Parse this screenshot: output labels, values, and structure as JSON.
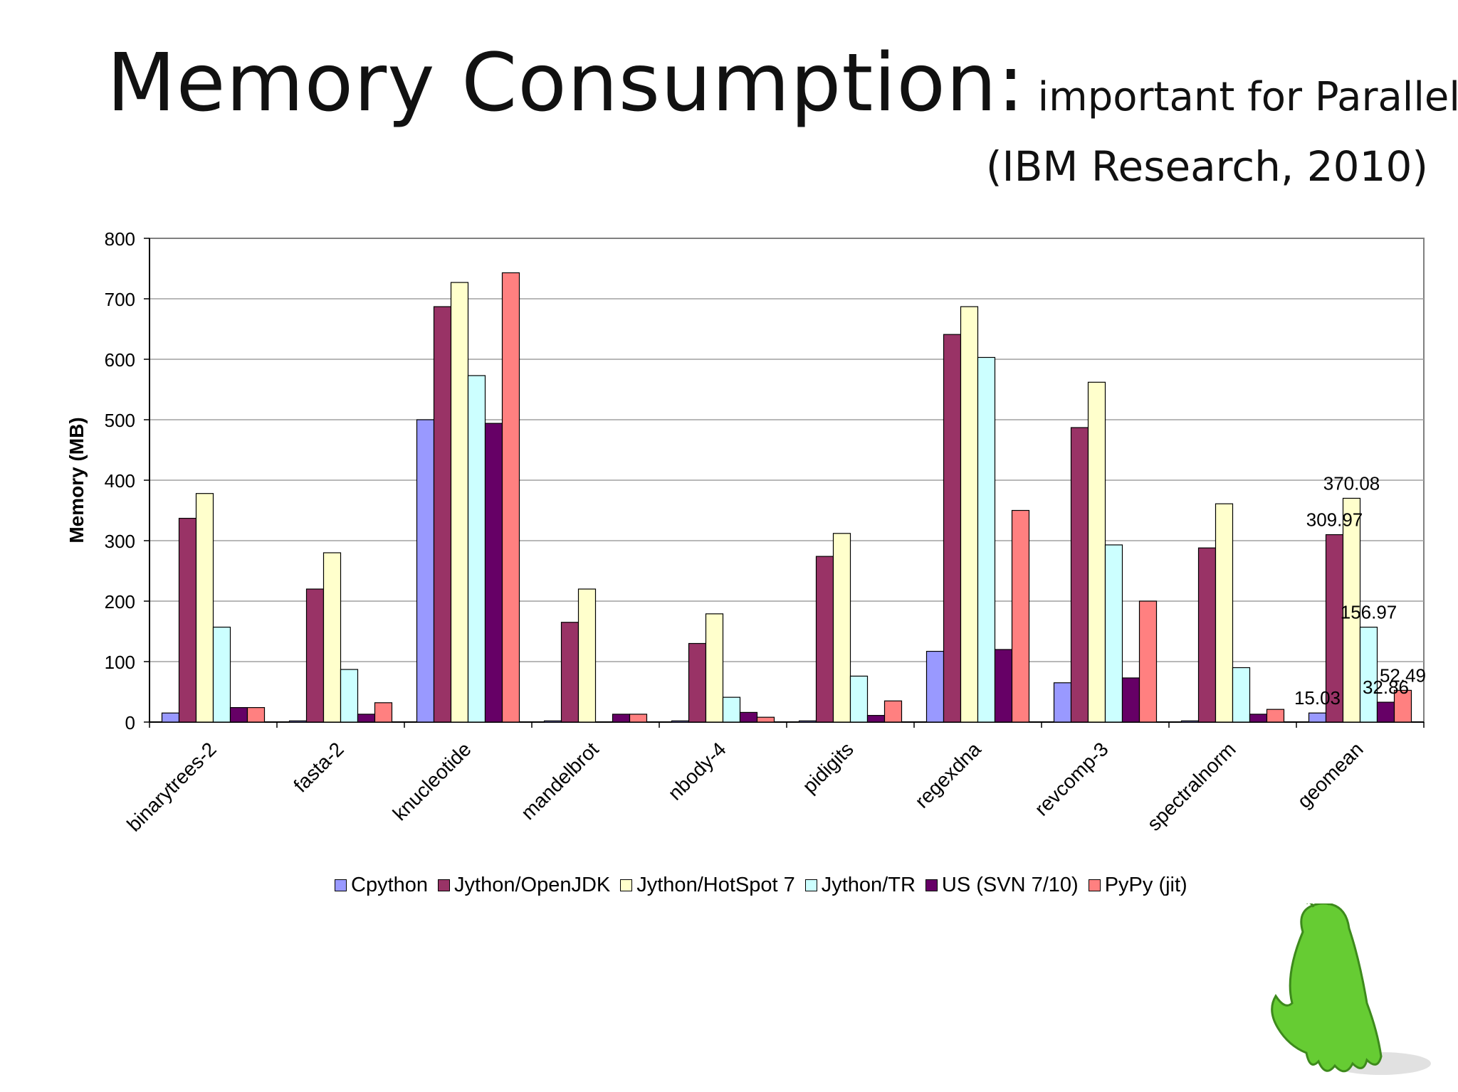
{
  "slide": {
    "title": "Memory Consumption:",
    "title_note": "important for Parallelism",
    "subtitle": "(IBM Research, 2010)"
  },
  "chart_data": {
    "type": "bar",
    "title": "",
    "xlabel": "",
    "ylabel": "Memory (MB)",
    "ylim": [
      0,
      800
    ],
    "yticks": [
      0,
      100,
      200,
      300,
      400,
      500,
      600,
      700,
      800
    ],
    "grid": true,
    "legend_position": "bottom",
    "categories": [
      "binarytrees-2",
      "fasta-2",
      "knucleotide",
      "mandelbrot",
      "nbody-4",
      "pidigits",
      "regexdna",
      "revcomp-3",
      "spectralnorm",
      "geomean"
    ],
    "series": [
      {
        "name": "Cpython",
        "color": "#9999ff",
        "values": [
          15,
          2,
          500,
          2,
          2,
          2,
          117,
          65,
          2,
          15.03
        ]
      },
      {
        "name": "Jython/OpenJDK",
        "color": "#993366",
        "values": [
          337,
          220,
          687,
          165,
          130,
          274,
          641,
          487,
          288,
          309.97
        ]
      },
      {
        "name": "Jython/HotSpot 7",
        "color": "#ffffcc",
        "values": [
          378,
          280,
          727,
          220,
          179,
          312,
          687,
          562,
          361,
          370.08
        ]
      },
      {
        "name": "Jython/TR",
        "color": "#ccffff",
        "values": [
          157,
          87,
          573,
          0,
          41,
          76,
          603,
          293,
          90,
          156.97
        ]
      },
      {
        "name": "US (SVN 7/10)",
        "color": "#660066",
        "values": [
          24,
          13,
          494,
          13,
          16,
          11,
          120,
          73,
          13,
          32.86
        ]
      },
      {
        "name": "PyPy (jit)",
        "color": "#ff8080",
        "values": [
          24,
          32,
          743,
          13,
          8,
          35,
          350,
          200,
          21,
          52.49
        ]
      }
    ],
    "data_labels": [
      {
        "category": "geomean",
        "series": "Cpython",
        "text": "15.03"
      },
      {
        "category": "geomean",
        "series": "Jython/OpenJDK",
        "text": "309.97"
      },
      {
        "category": "geomean",
        "series": "Jython/HotSpot 7",
        "text": "370.08"
      },
      {
        "category": "geomean",
        "series": "Jython/TR",
        "text": "156.97"
      },
      {
        "category": "geomean",
        "series": "US (SVN 7/10)",
        "text": "32.86"
      },
      {
        "category": "geomean",
        "series": "PyPy (jit)",
        "text": "52.49"
      }
    ]
  },
  "mascot": {
    "icon": "pypy-mascot-icon",
    "color": "#66cc33"
  }
}
